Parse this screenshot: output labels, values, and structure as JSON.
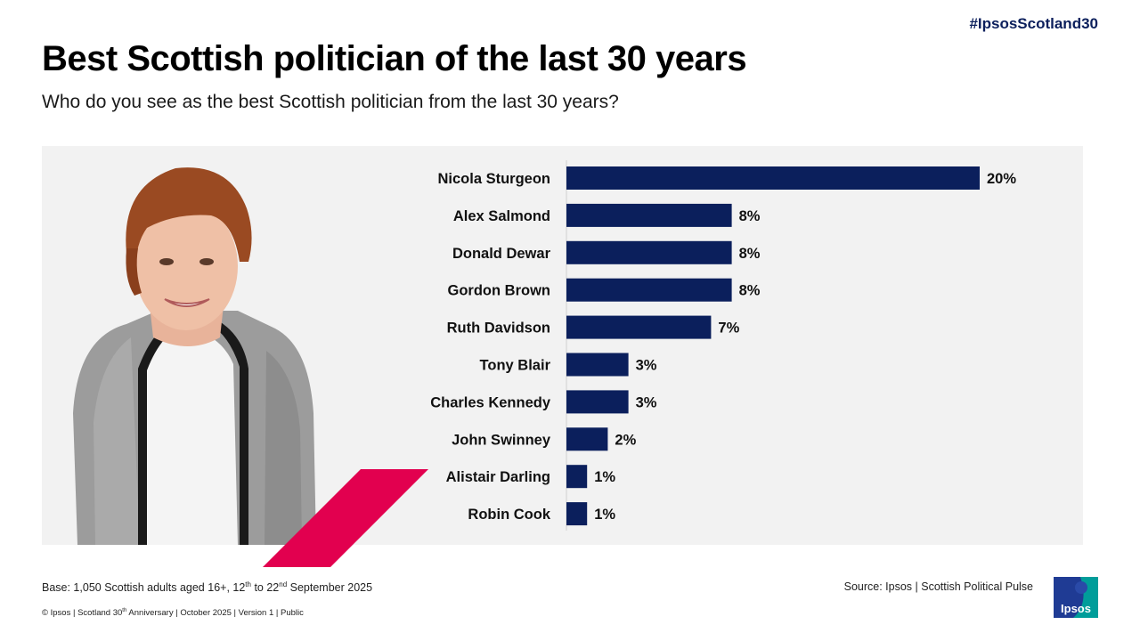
{
  "header": {
    "hashtag": "#IpsosScotland30",
    "title": "Best Scottish politician of the last 30 years",
    "subtitle": "Who do you see as the best Scottish politician from the last 30 years?"
  },
  "chart_data": {
    "type": "bar",
    "orientation": "horizontal",
    "categories": [
      "Nicola Sturgeon",
      "Alex Salmond",
      "Donald Dewar",
      "Gordon Brown",
      "Ruth Davidson",
      "Tony Blair",
      "Charles Kennedy",
      "John Swinney",
      "Alistair Darling",
      "Robin Cook"
    ],
    "values": [
      20,
      8,
      8,
      8,
      7,
      3,
      3,
      2,
      1,
      1
    ],
    "value_labels": [
      "20%",
      "8%",
      "8%",
      "8%",
      "7%",
      "3%",
      "3%",
      "2%",
      "1%",
      "1%"
    ],
    "bar_color": "#0b1f5c",
    "xlim": [
      0,
      20
    ],
    "grid": false,
    "legend": false
  },
  "footer": {
    "base_prefix": "Base: 1,050 Scottish adults aged 16+, 12",
    "base_sup1": "th",
    "base_mid": " to 22",
    "base_sup2": "nd",
    "base_suffix": " September 2025",
    "source": "Source: Ipsos | Scottish Political Pulse",
    "copy_prefix": "© Ipsos | Scotland 30",
    "copy_sup": "th",
    "copy_suffix": " Anniversary | October 2025 | Version 1 | Public"
  },
  "logo": {
    "text": "Ipsos"
  },
  "colors": {
    "accent": "#e2004f",
    "navy": "#0b1f5c",
    "logo_teal": "#009d9a",
    "logo_blue": "#1f3b94"
  }
}
